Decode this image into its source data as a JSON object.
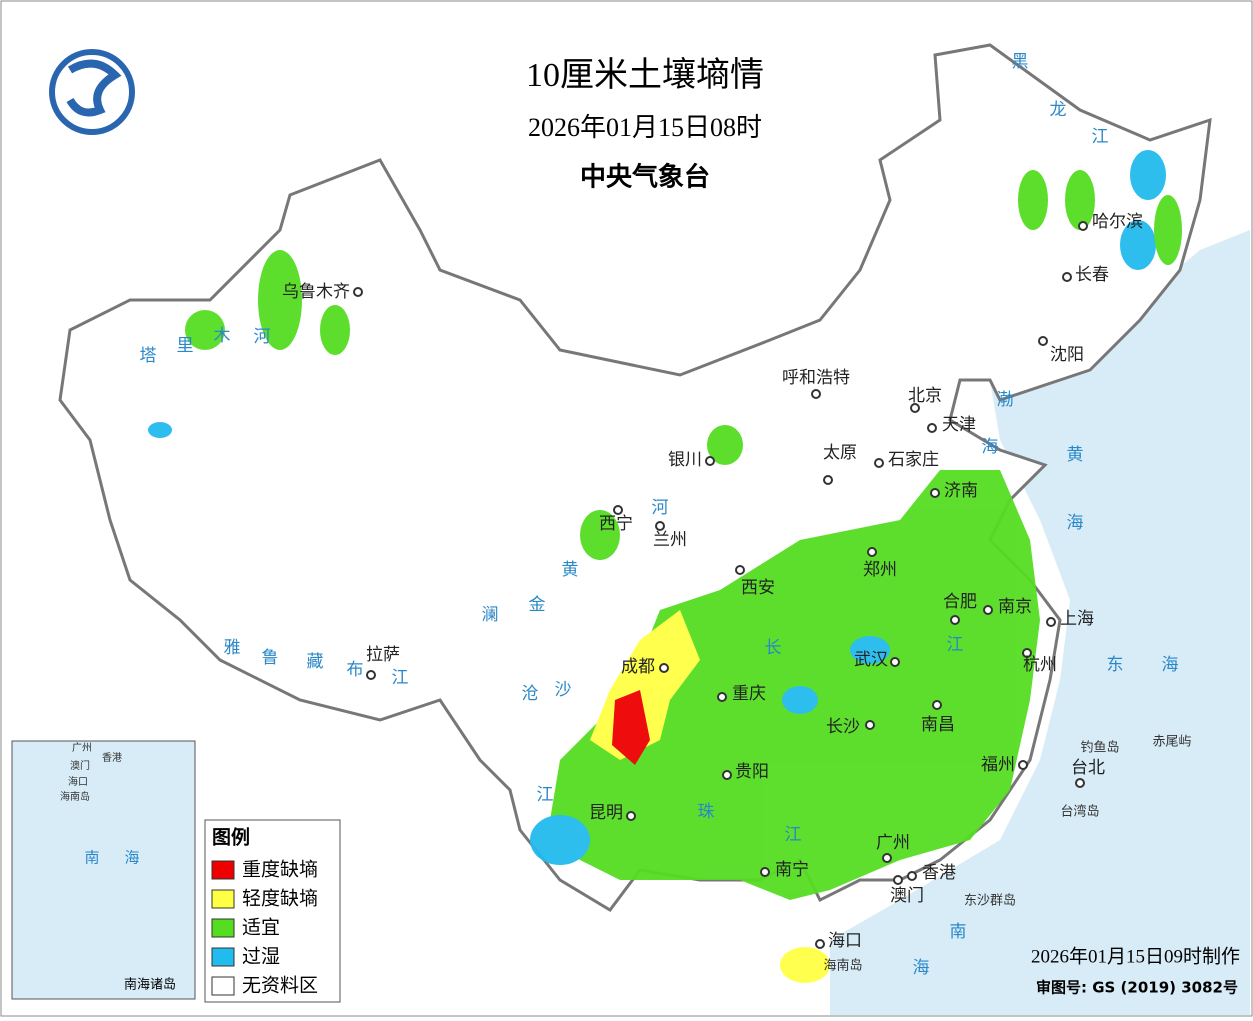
{
  "header": {
    "title": "10厘米土壤墒情",
    "date": "2026年01月15日08时",
    "issuer": "中央气象台"
  },
  "legend": {
    "title": "图例",
    "items": [
      {
        "label": "重度缺墒",
        "color": "#ee0000"
      },
      {
        "label": "轻度缺墒",
        "color": "#ffff44"
      },
      {
        "label": "适宜",
        "color": "#55dd22"
      },
      {
        "label": "过湿",
        "color": "#22bbee"
      },
      {
        "label": "无资料区",
        "color": "#ffffff"
      }
    ]
  },
  "footer": {
    "made": "2026年01月15日09时制作",
    "approval": "审图号: GS (2019) 3082号"
  },
  "cities": [
    "乌鲁木齐",
    "哈尔滨",
    "长春",
    "沈阳",
    "呼和浩特",
    "北京",
    "天津",
    "太原",
    "石家庄",
    "济南",
    "银川",
    "西宁",
    "兰州",
    "郑州",
    "西安",
    "合肥",
    "南京",
    "上海",
    "成都",
    "武汉",
    "杭州",
    "重庆",
    "长沙",
    "南昌",
    "拉萨",
    "贵阳",
    "福州",
    "台北",
    "昆明",
    "南宁",
    "广州",
    "香港",
    "澳门",
    "海口"
  ],
  "water_labels": [
    "黑",
    "龙",
    "江",
    "塔",
    "里",
    "木",
    "河",
    "渤",
    "海",
    "黄",
    "海",
    "黄",
    "河",
    "雅",
    "鲁",
    "藏",
    "布",
    "江",
    "澜",
    "沧",
    "江",
    "金",
    "沙",
    "长",
    "江",
    "珠",
    "江",
    "东",
    "海",
    "南",
    "海"
  ],
  "place_labels": [
    "钓鱼岛",
    "赤尾屿",
    "台湾岛",
    "东沙群岛",
    "海南岛"
  ],
  "inset": {
    "labels": [
      "广州",
      "香港",
      "澳门",
      "海口",
      "海南岛",
      "南",
      "海"
    ],
    "title": "南海诸岛"
  }
}
